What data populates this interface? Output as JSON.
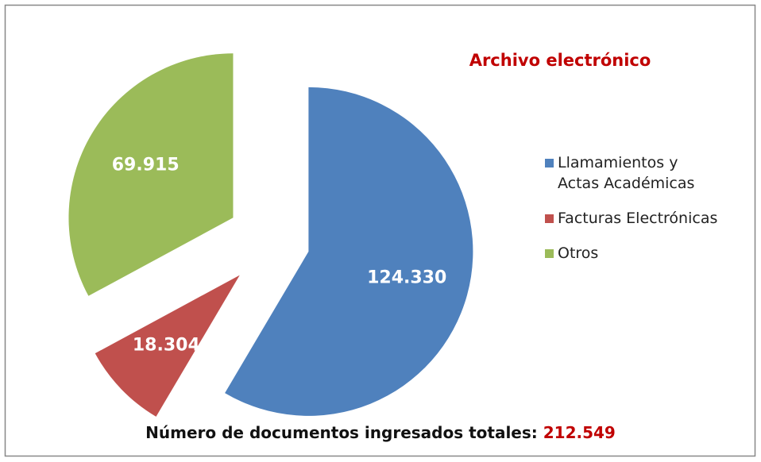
{
  "chart_data": {
    "type": "pie",
    "title": "Archivo electrónico",
    "categories": [
      "Llamamientos y Actas Académicas",
      "Facturas Electrónicas",
      "Otros"
    ],
    "values": [
      124330,
      18304,
      69915
    ],
    "value_labels": [
      "124.330",
      "18.304",
      "69.915"
    ],
    "colors": [
      "#4f81bd",
      "#c0504d",
      "#9bbb59"
    ],
    "legend": "right",
    "footer": {
      "label": "Número de documentos ingresados totales:",
      "total": "212.549"
    }
  }
}
